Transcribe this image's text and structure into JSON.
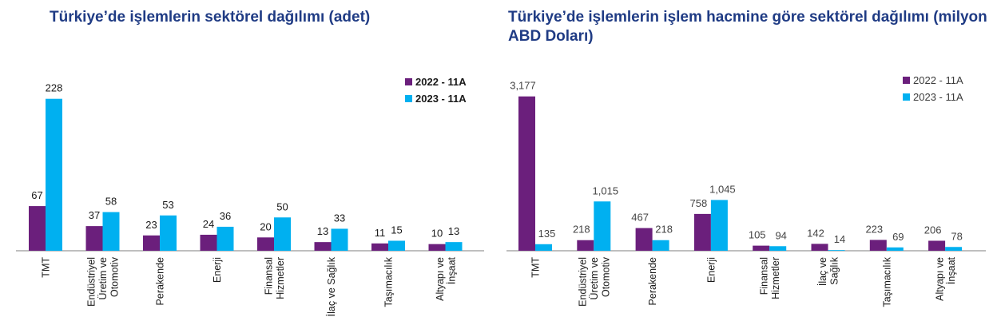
{
  "chart_data": [
    {
      "type": "bar",
      "title": "Türkiye’de işlemlerin sektörel dağılımı (adet)",
      "categories": [
        [
          "TMT"
        ],
        [
          "Endüstriyel",
          "Üretim ve",
          "Otomotiv"
        ],
        [
          "Perakende"
        ],
        [
          "Enerji"
        ],
        [
          "Finansal",
          "Hizmetler"
        ],
        [
          "İlaç ve Sağlık"
        ],
        [
          "Taşımacılık"
        ],
        [
          "Altyapı ve",
          "İnşaat"
        ]
      ],
      "series": [
        {
          "name": "2022 - 11A",
          "values": [
            67,
            37,
            23,
            24,
            20,
            13,
            11,
            10
          ],
          "labels": [
            "67",
            "37",
            "23",
            "24",
            "20",
            "13",
            "11",
            "10"
          ],
          "color": "#6b1f7c"
        },
        {
          "name": "2023 - 11A",
          "values": [
            228,
            58,
            53,
            36,
            50,
            33,
            15,
            13
          ],
          "labels": [
            "228",
            "58",
            "53",
            "36",
            "50",
            "33",
            "15",
            "13"
          ],
          "color": "#00b0f0"
        }
      ],
      "ylim": [
        0,
        260
      ],
      "legend": "top-right",
      "grid": false
    },
    {
      "type": "bar",
      "title": "Türkiye’de işlemlerin işlem hacmine göre sektörel dağılımı (milyon ABD Doları)",
      "categories": [
        [
          "TMT"
        ],
        [
          "Endüstriyel",
          "Üretim ve",
          "Otomotiv"
        ],
        [
          "Perakende"
        ],
        [
          "Enerji"
        ],
        [
          "Finansal",
          "Hizmetler"
        ],
        [
          "İlaç ve",
          "Sağlık"
        ],
        [
          "Taşımacılık"
        ],
        [
          "Altyapı ve",
          "İnşaat"
        ]
      ],
      "series": [
        {
          "name": "2022 - 11A",
          "values": [
            3177,
            218,
            467,
            758,
            105,
            142,
            223,
            206
          ],
          "labels": [
            "3,177",
            "218",
            "467",
            "758",
            "105",
            "142",
            "223",
            "206"
          ],
          "color": "#6b1f7c"
        },
        {
          "name": "2023 - 11A",
          "values": [
            135,
            1015,
            218,
            1045,
            94,
            14,
            69,
            78
          ],
          "labels": [
            "135",
            "1,015",
            "218",
            "1,045",
            "94",
            "14",
            "69",
            "78"
          ],
          "color": "#00b0f0"
        }
      ],
      "ylim": [
        0,
        3600
      ],
      "legend": "top-right",
      "grid": false
    }
  ]
}
